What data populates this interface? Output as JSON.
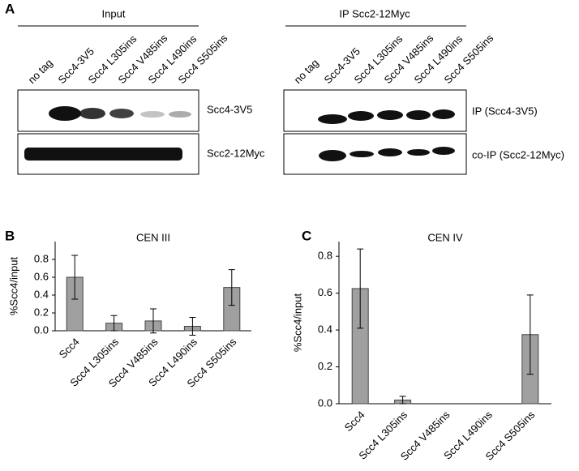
{
  "blots": {
    "panel": "A",
    "input": {
      "header": "Input",
      "lanes": [
        "no tag",
        "Scc4-3V5",
        "Scc4 L305ins",
        "Scc4 V485ins",
        "Scc4 L490ins",
        "Scc4 S505ins"
      ],
      "rows": [
        "Scc4-3V5",
        "Scc2-12Myc"
      ]
    },
    "ip": {
      "header": "IP Scc2-12Myc",
      "lanes": [
        "no tag",
        "Scc4-3V5",
        "Scc4 L305ins",
        "Scc4 V485ins",
        "Scc4 L490ins",
        "Scc4 S505ins"
      ],
      "rows": [
        "IP (Scc4-3V5)",
        "co-IP (Scc2-12Myc)"
      ]
    }
  },
  "chart_data": [
    {
      "type": "bar",
      "panel": "B",
      "title": "CEN III",
      "ylabel": "%Scc4/input",
      "categories": [
        "Scc4",
        "Scc4 L305ins",
        "Scc4 V485ins",
        "Scc4 L490ins",
        "Scc4 S505ins"
      ],
      "values": [
        0.6,
        0.085,
        0.11,
        0.05,
        0.485
      ],
      "errors": [
        0.245,
        0.085,
        0.135,
        0.1,
        0.2
      ],
      "color": "#a0a0a0",
      "ylim": [
        0,
        1.0
      ],
      "yticks": [
        {
          "value": 0,
          "label": "0.0"
        },
        0.2,
        0.4,
        0.6,
        0.8
      ]
    },
    {
      "type": "bar",
      "panel": "C",
      "title": "CEN IV",
      "ylabel": "%Scc4/input",
      "categories": [
        "Scc4",
        "Scc4 L305ins",
        "Scc4 V485ins",
        "Scc4 L490ins",
        "Scc4 S505ins"
      ],
      "values": [
        0.625,
        0.02,
        0,
        0,
        0.375
      ],
      "errors": [
        0.215,
        0.02,
        0,
        0,
        0.215
      ],
      "color": "#a0a0a0",
      "ylim": [
        0,
        0.88
      ],
      "yticks": [
        {
          "value": 0,
          "label": "0.0"
        },
        0.2,
        0.4,
        0.6,
        0.8
      ]
    }
  ]
}
